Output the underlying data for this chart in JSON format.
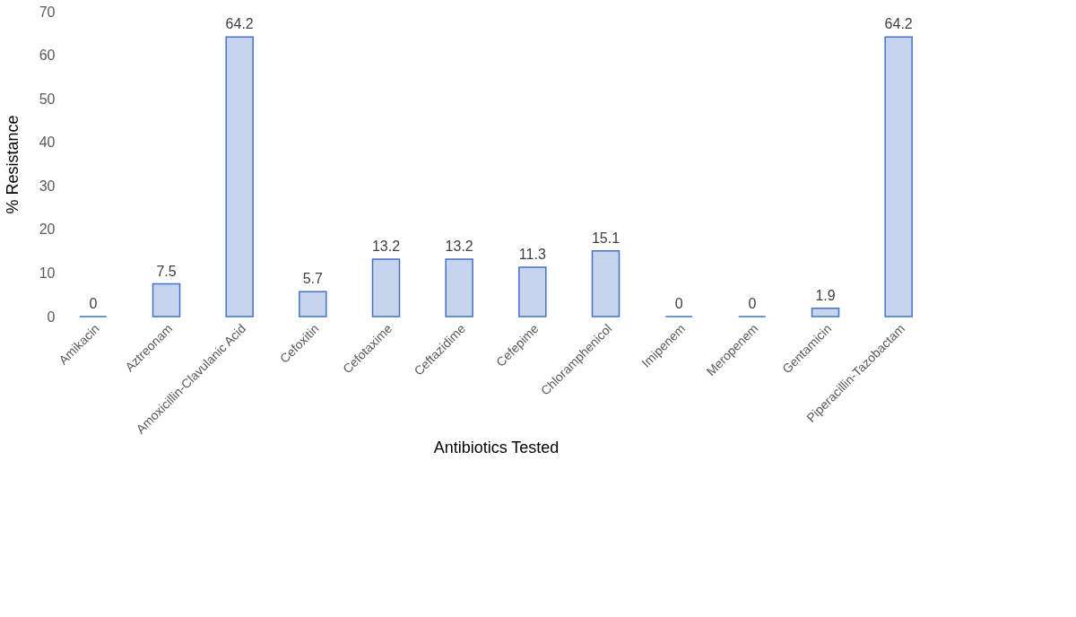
{
  "chart_data": {
    "type": "bar",
    "xlabel": "Antibiotics Tested",
    "ylabel": "% Resistance",
    "categories": [
      "Amikacin",
      "Aztreonam",
      "Amoxicillin-Clavulanic Acid",
      "Cefoxitin",
      "Cefotaxime",
      "Ceftazidime",
      "Cefepime",
      "Chloramphenicol",
      "Imipenem",
      "Meropenem",
      "Gentamicin",
      "Piperacillin-Tazobactam"
    ],
    "values": [
      0,
      7.5,
      64.2,
      5.7,
      13.2,
      13.2,
      11.3,
      15.1,
      0,
      0,
      1.9,
      64.2
    ],
    "color": "#4472c4",
    "ylim": [
      0,
      70
    ],
    "yticks": [
      0,
      10,
      20,
      30,
      40,
      50,
      60,
      70
    ],
    "grid": false,
    "data_labels": true
  }
}
